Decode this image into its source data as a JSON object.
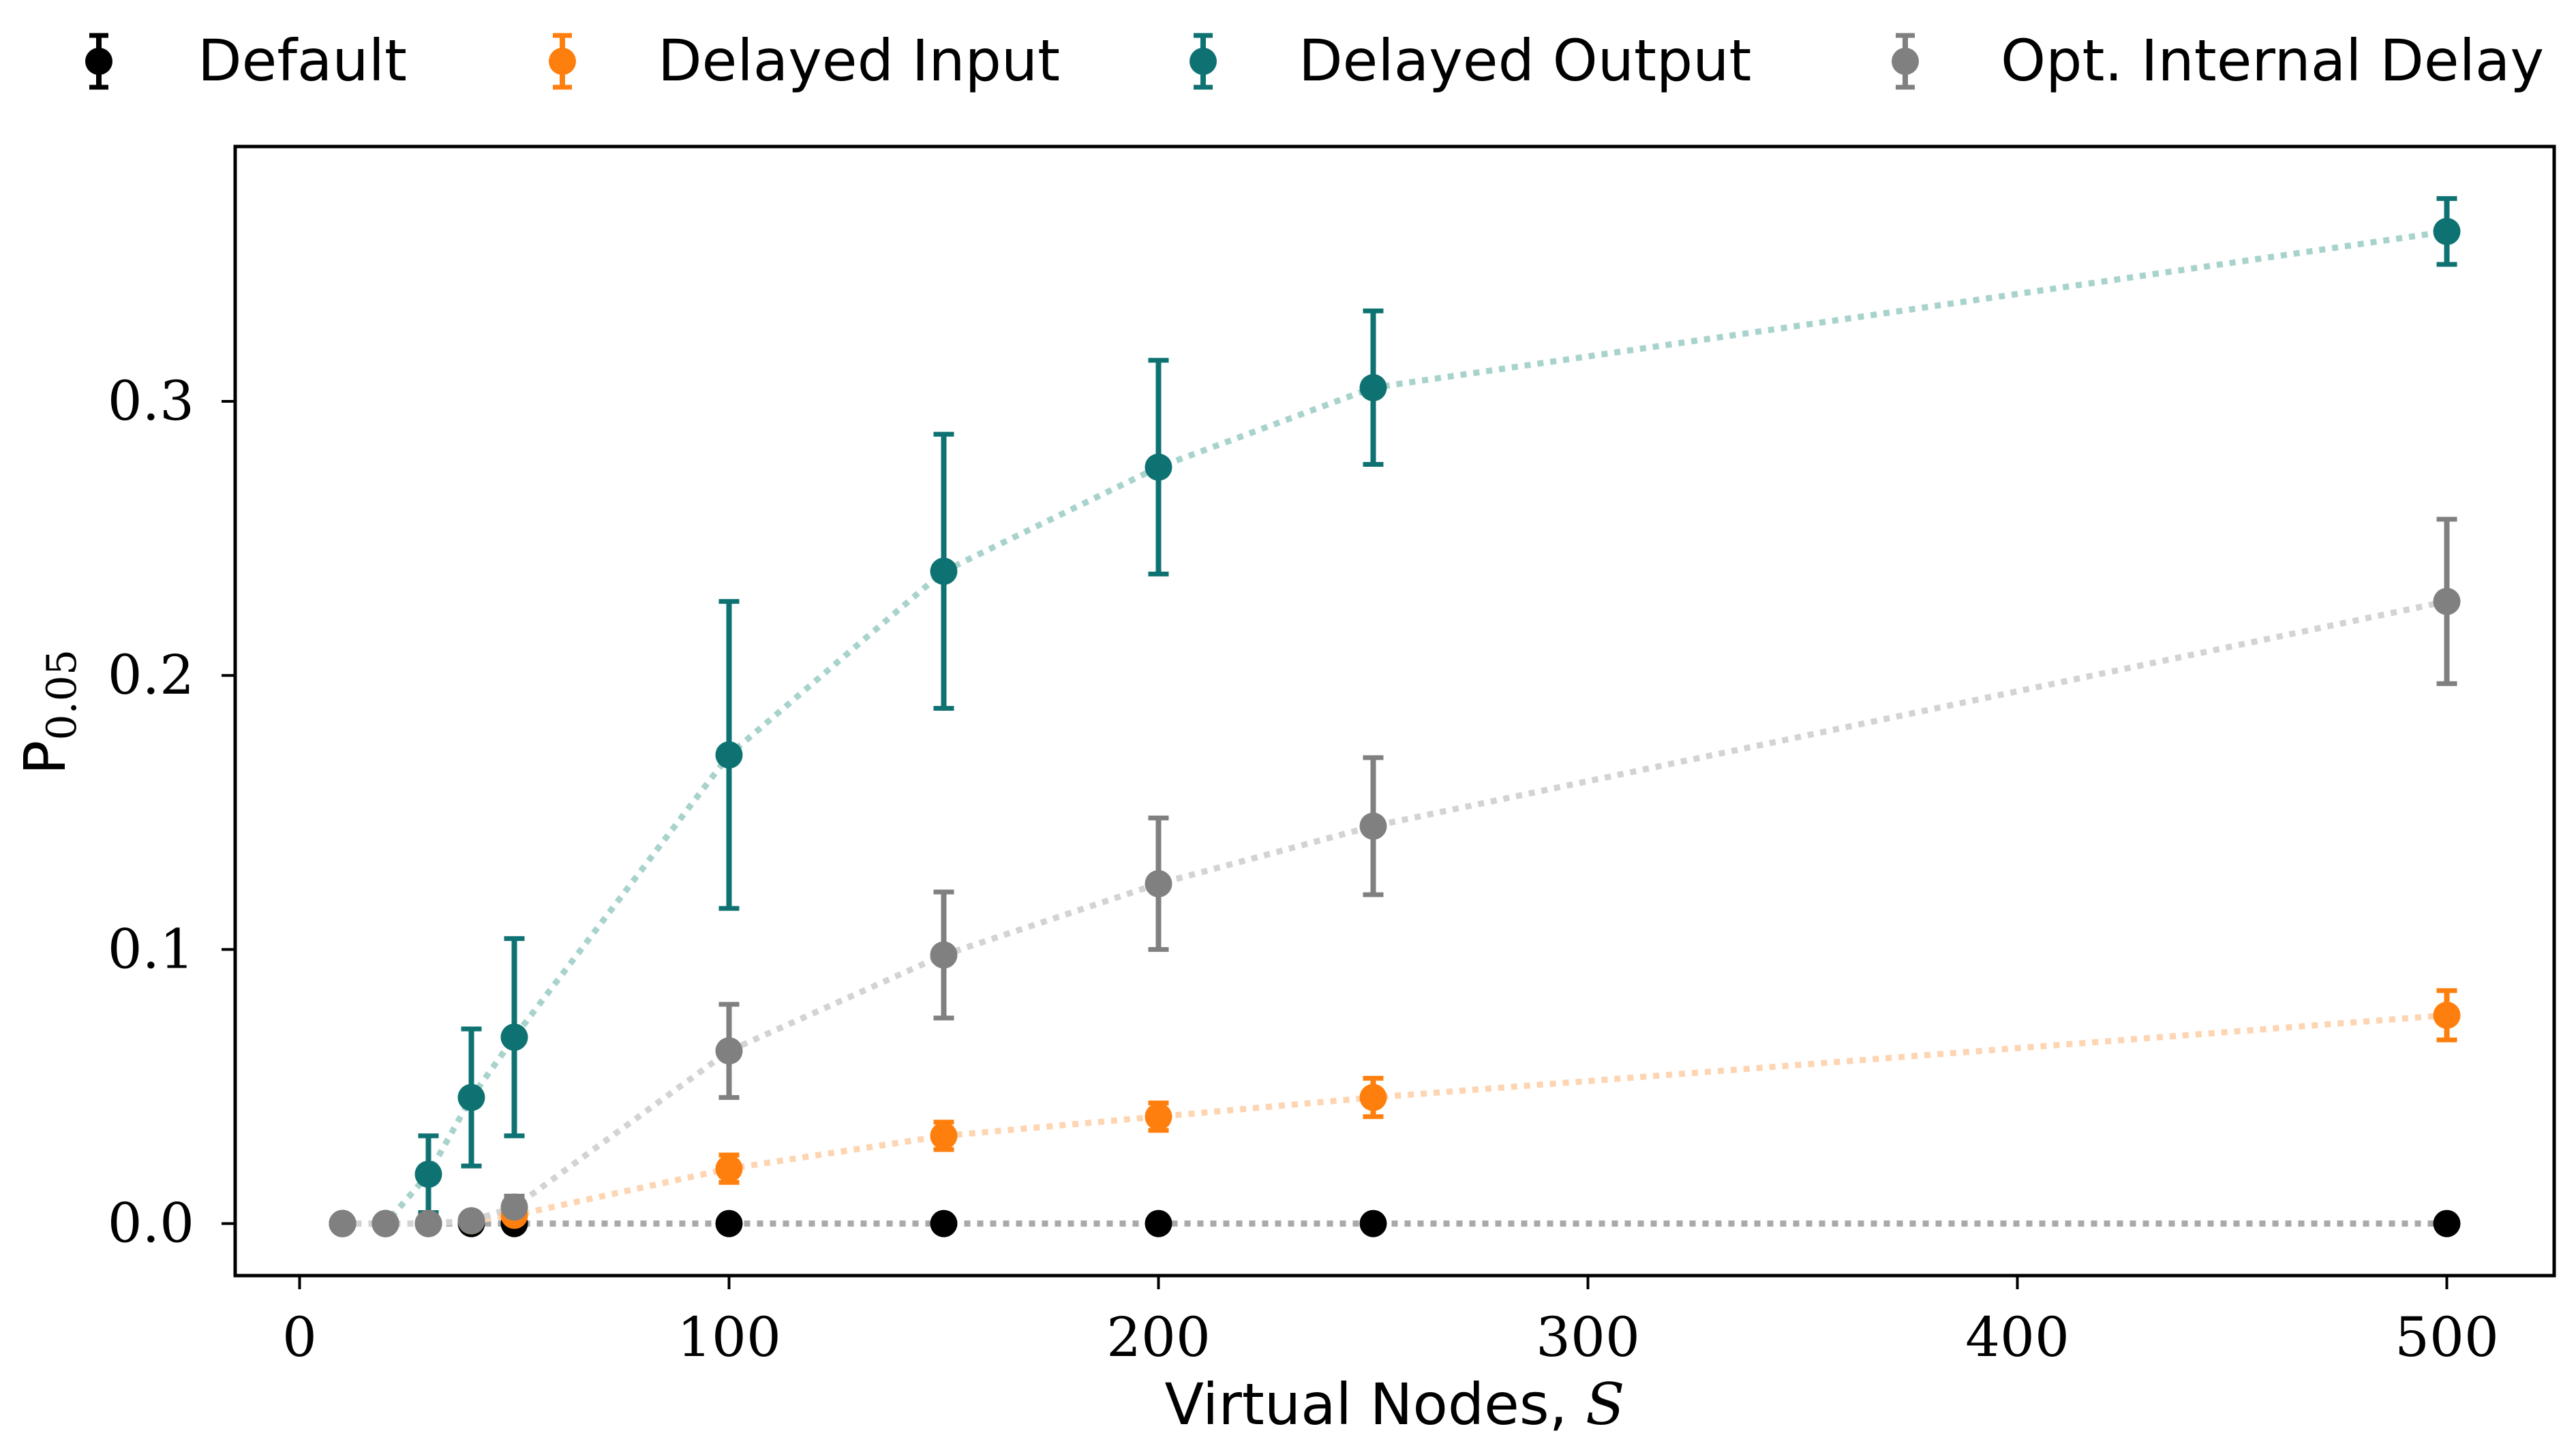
{
  "chart_data": {
    "type": "scatter",
    "title": "",
    "xlabel_prefix": "Virtual Nodes, ",
    "xlabel_var": "S",
    "ylabel_main": "P",
    "ylabel_sub": "0.05",
    "xlim": [
      -15,
      525
    ],
    "ylim": [
      -0.019,
      0.393
    ],
    "xticks": [
      0,
      100,
      200,
      300,
      400,
      500
    ],
    "xtick_labels": [
      "0",
      "100",
      "200",
      "300",
      "400",
      "500"
    ],
    "yticks": [
      0.0,
      0.1,
      0.2,
      0.3
    ],
    "ytick_labels": [
      "0.0",
      "0.1",
      "0.2",
      "0.3"
    ],
    "grid": false,
    "legend_position": "top",
    "series": [
      {
        "name": "Default",
        "color": "#000000",
        "line_color": "#a9a9a9",
        "points": [
          {
            "x": 10,
            "y": 0.0,
            "err": 0.0
          },
          {
            "x": 20,
            "y": 0.0,
            "err": 0.0
          },
          {
            "x": 30,
            "y": 0.0,
            "err": 0.0
          },
          {
            "x": 40,
            "y": 0.0,
            "err": 0.0
          },
          {
            "x": 50,
            "y": 0.0,
            "err": 0.0
          },
          {
            "x": 100,
            "y": 0.0,
            "err": 0.0
          },
          {
            "x": 150,
            "y": 0.0,
            "err": 0.0
          },
          {
            "x": 200,
            "y": 0.0,
            "err": 0.0
          },
          {
            "x": 250,
            "y": 0.0,
            "err": 0.0
          },
          {
            "x": 500,
            "y": 0.0,
            "err": 0.0
          }
        ]
      },
      {
        "name": "Delayed Input",
        "color": "#ff7f0e",
        "line_color": "#fdd5b2",
        "points": [
          {
            "x": 10,
            "y": 0.0,
            "err": 0.0
          },
          {
            "x": 20,
            "y": 0.0,
            "err": 0.0
          },
          {
            "x": 30,
            "y": 0.0,
            "err": 0.0
          },
          {
            "x": 40,
            "y": 0.001,
            "err": 0.001
          },
          {
            "x": 50,
            "y": 0.003,
            "err": 0.002
          },
          {
            "x": 100,
            "y": 0.02,
            "err": 0.005
          },
          {
            "x": 150,
            "y": 0.032,
            "err": 0.005
          },
          {
            "x": 200,
            "y": 0.039,
            "err": 0.005
          },
          {
            "x": 250,
            "y": 0.046,
            "err": 0.007
          },
          {
            "x": 500,
            "y": 0.076,
            "err": 0.009
          }
        ]
      },
      {
        "name": "Delayed Output",
        "color": "#0f7272",
        "line_color": "#a8d3cc",
        "points": [
          {
            "x": 10,
            "y": 0.0,
            "err": 0.0
          },
          {
            "x": 20,
            "y": 0.0,
            "err": 0.0
          },
          {
            "x": 30,
            "y": 0.018,
            "err": 0.014
          },
          {
            "x": 40,
            "y": 0.046,
            "err": 0.025
          },
          {
            "x": 50,
            "y": 0.068,
            "err": 0.036
          },
          {
            "x": 100,
            "y": 0.171,
            "err": 0.056
          },
          {
            "x": 150,
            "y": 0.238,
            "err": 0.05
          },
          {
            "x": 200,
            "y": 0.276,
            "err": 0.039
          },
          {
            "x": 250,
            "y": 0.305,
            "err": 0.028
          },
          {
            "x": 500,
            "y": 0.362,
            "err": 0.012
          }
        ]
      },
      {
        "name": "Opt. Internal Delay",
        "color": "#808080",
        "line_color": "#d3d3d3",
        "points": [
          {
            "x": 10,
            "y": 0.0,
            "err": 0.0
          },
          {
            "x": 20,
            "y": 0.0,
            "err": 0.0
          },
          {
            "x": 30,
            "y": 0.0,
            "err": 0.0
          },
          {
            "x": 40,
            "y": 0.001,
            "err": 0.002
          },
          {
            "x": 50,
            "y": 0.006,
            "err": 0.004
          },
          {
            "x": 100,
            "y": 0.063,
            "err": 0.017
          },
          {
            "x": 150,
            "y": 0.098,
            "err": 0.023
          },
          {
            "x": 200,
            "y": 0.124,
            "err": 0.024
          },
          {
            "x": 250,
            "y": 0.145,
            "err": 0.025
          },
          {
            "x": 500,
            "y": 0.227,
            "err": 0.03
          }
        ]
      }
    ]
  }
}
